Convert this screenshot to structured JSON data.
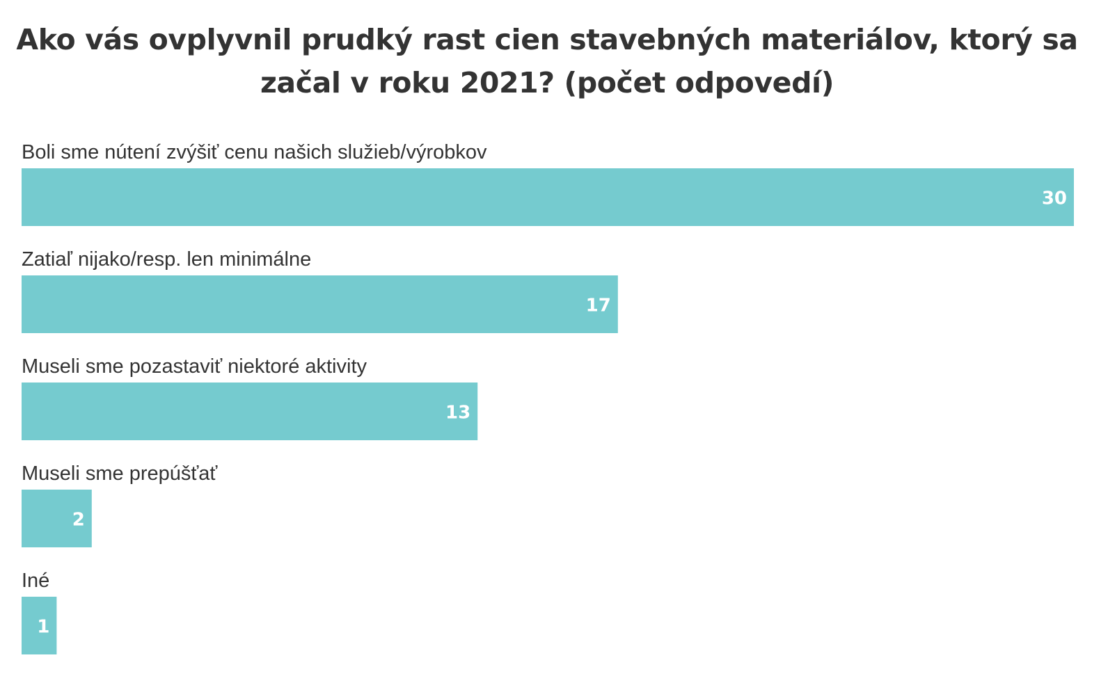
{
  "chart_data": {
    "type": "bar",
    "orientation": "horizontal",
    "title": "Ako vás ovplyvnil prudký rast cien stavebných materiálov, ktorý sa začal v roku 2021? (počet odpovedí)",
    "categories": [
      "Boli sme nútení zvýšiť cenu našich služieb/výrobkov",
      "Zatiaľ nijako/resp. len minimálne",
      "Museli sme pozastaviť niektoré aktivity",
      "Museli sme prepúšťať",
      "Iné"
    ],
    "values": [
      30,
      17,
      13,
      2,
      1
    ],
    "xlim": [
      0,
      30
    ],
    "grid": false,
    "legend": "none",
    "bar_color": "#75cbcf",
    "label_color": "#ffffff",
    "text_color": "#333333"
  }
}
